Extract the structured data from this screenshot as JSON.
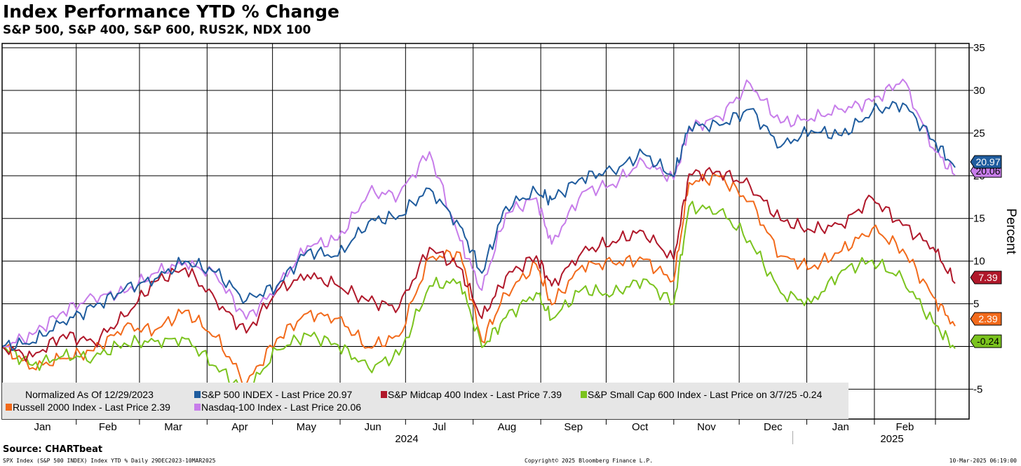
{
  "title": "Index Performance YTD % Change",
  "subtitle": "S&P 500, S&P 400, S&P 600, RUS2K, NDX 100",
  "source": "Source: CHARTbeat",
  "footer_left": "SPX Index (S&P 500 INDEX) Index YTD %  Daily 29DEC2023-10MAR2025",
  "footer_center": "Copyright© 2025 Bloomberg Finance L.P.",
  "footer_right": "10-Mar-2025 06:19:00",
  "chart_data": {
    "type": "line",
    "title": "Index Performance YTD % Change",
    "ylabel": "Percent",
    "ylim": [
      -8.5,
      35.5
    ],
    "yticks": [
      -5,
      0,
      5,
      10,
      15,
      20,
      25,
      30,
      35
    ],
    "ytick_labels": [
      "-5",
      "",
      "5",
      "10",
      "15",
      "20",
      "25",
      "30",
      "35"
    ],
    "grid": true,
    "month_labels": [
      "Jan",
      "Feb",
      "Mar",
      "Apr",
      "May",
      "Jun",
      "Jul",
      "Aug",
      "Sep",
      "Oct",
      "Nov",
      "Dec",
      "Jan",
      "Feb"
    ],
    "year_labels": [
      "2024",
      "2025"
    ],
    "legend": {
      "placement": "bottom-left",
      "header": "Normalized As Of 12/29/2023",
      "entries": [
        "S&P 500 INDEX - Last Price      20.97",
        "S&P Midcap 400 Index - Last Price 7.39",
        "S&P Small Cap 600 Index - Last Price on 3/7/25 -0.24",
        "Russell 2000 Index - Last Price 2.39",
        "Nasdaq-100 Index - Last Price 20.06"
      ]
    },
    "x": [
      "2023-12-29",
      "2024-01-12",
      "2024-01-26",
      "2024-02-09",
      "2024-02-23",
      "2024-03-08",
      "2024-03-22",
      "2024-04-05",
      "2024-04-19",
      "2024-05-03",
      "2024-05-17",
      "2024-05-31",
      "2024-06-14",
      "2024-06-28",
      "2024-07-12",
      "2024-07-26",
      "2024-08-05",
      "2024-08-16",
      "2024-08-30",
      "2024-09-06",
      "2024-09-20",
      "2024-10-04",
      "2024-10-18",
      "2024-11-01",
      "2024-11-08",
      "2024-11-22",
      "2024-12-06",
      "2024-12-20",
      "2025-01-03",
      "2025-01-17",
      "2025-01-31",
      "2025-02-14",
      "2025-02-28",
      "2025-03-10"
    ],
    "series": [
      {
        "name": "S&P 500 INDEX",
        "color": "#1f5c9e",
        "last": "20.97",
        "values": [
          0,
          0.5,
          2.9,
          4.6,
          6.7,
          7.9,
          10.0,
          8.7,
          5.4,
          7.1,
          11.2,
          10.6,
          14.6,
          15.3,
          18.5,
          14.1,
          8.6,
          16.4,
          18.1,
          17.2,
          19.8,
          20.6,
          22.6,
          19.9,
          25.8,
          25.9,
          27.8,
          23.4,
          25.3,
          24.7,
          27.5,
          28.5,
          24.2,
          20.97
        ]
      },
      {
        "name": "S&P Midcap 400 Index",
        "color": "#b0182a",
        "last": "7.39",
        "values": [
          0,
          -1.2,
          1.4,
          0.5,
          3.5,
          7.6,
          9.2,
          5.4,
          1.6,
          6.5,
          8.4,
          7.1,
          5.3,
          4.6,
          11.6,
          9.2,
          3.3,
          8.2,
          10.6,
          7.1,
          11.1,
          12.3,
          13.5,
          10.2,
          20.2,
          20.5,
          18.8,
          14.8,
          13.6,
          14.3,
          17.4,
          14.2,
          11.6,
          7.39
        ]
      },
      {
        "name": "S&P Small Cap 600 Index",
        "color": "#7bc31e",
        "last": "-0.24",
        "values": [
          0,
          -2.2,
          -1.1,
          -1.3,
          0.4,
          0.6,
          0.9,
          -2.3,
          -5.4,
          -0.4,
          1.4,
          0.2,
          -2.5,
          -1.0,
          7.1,
          7.6,
          -0.1,
          3.4,
          6.3,
          3.2,
          6.7,
          6.1,
          7.9,
          5.0,
          16.4,
          15.9,
          12.4,
          6.3,
          5.1,
          8.9,
          10.1,
          7.9,
          2.8,
          -0.24
        ]
      },
      {
        "name": "Russell 2000 Index",
        "color": "#f26a1b",
        "last": "2.39",
        "values": [
          0,
          -2.5,
          -1.4,
          -0.5,
          2.3,
          1.9,
          4.2,
          1.1,
          -4.4,
          0.9,
          3.9,
          3.3,
          -0.1,
          1.2,
          10.4,
          11.0,
          0.6,
          6.2,
          9.6,
          4.9,
          9.5,
          9.8,
          10.2,
          7.7,
          19.2,
          19.9,
          17.0,
          10.6,
          9.2,
          11.2,
          13.8,
          11.4,
          5.8,
          2.39
        ]
      },
      {
        "name": "Nasdaq-100 Index",
        "color": "#c77dea",
        "last": "20.06",
        "values": [
          0,
          1.4,
          4.1,
          5.8,
          6.3,
          8.6,
          9.8,
          8.4,
          3.2,
          6.9,
          11.8,
          12.5,
          18.0,
          17.8,
          22.8,
          12.4,
          6.6,
          15.6,
          17.4,
          12.0,
          18.1,
          19.0,
          21.7,
          19.6,
          25.5,
          26.9,
          30.8,
          26.2,
          26.7,
          27.8,
          28.7,
          31.3,
          23.2,
          20.06
        ]
      }
    ]
  }
}
